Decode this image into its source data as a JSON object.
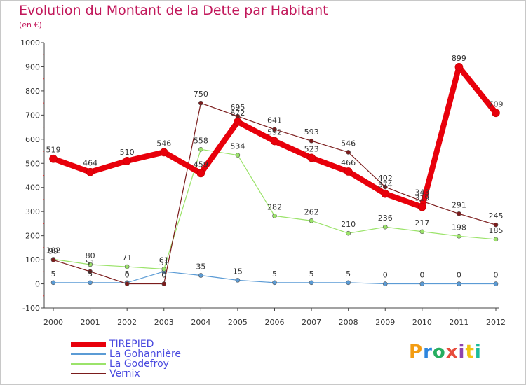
{
  "title": "Evolution du Montant de la Dette par Habitant",
  "subtitle": "(en €)",
  "logo": {
    "text": "Proxiti",
    "colors": [
      "#f39c12",
      "#2e86de",
      "#27ae60",
      "#e74c3c",
      "#8e44ad",
      "#f1c40f",
      "#1abc9c"
    ]
  },
  "chart_data": {
    "type": "line",
    "title": "Evolution du Montant de la Dette par Habitant",
    "ylabel": "(en €)",
    "xlabel": "",
    "x": [
      "2000",
      "2001",
      "2002",
      "2003",
      "2004",
      "2005",
      "2006",
      "2007",
      "2008",
      "2009",
      "2010",
      "2011",
      "2012"
    ],
    "ylim": [
      -100,
      1000
    ],
    "yticks": [
      "-100",
      "0",
      "100",
      "200",
      "300",
      "400",
      "500",
      "600",
      "700",
      "800",
      "900",
      "1000"
    ],
    "grid": false,
    "legend_position": "bottom-left",
    "series": [
      {
        "name": "TIREPIED",
        "color": "#e8000b",
        "values": [
          519,
          464,
          510,
          546,
          459,
          672,
          592,
          523,
          466,
          374,
          319,
          899,
          709
        ],
        "labels": [
          "519",
          "464",
          "510",
          "546",
          "459",
          "672",
          "592",
          "523",
          "466",
          "374",
          "319",
          "899",
          "709"
        ]
      },
      {
        "name": "La Gohannière",
        "color": "#5b9bd5",
        "values": [
          5,
          5,
          5,
          51,
          35,
          15,
          5,
          5,
          5,
          0,
          0,
          0,
          0
        ],
        "labels": [
          "5",
          "5",
          "5",
          "51",
          "35",
          "15",
          "5",
          "5",
          "5",
          "0",
          "0",
          "0",
          "0"
        ]
      },
      {
        "name": "La Godefroy",
        "color": "#9be36a",
        "values": [
          102,
          80,
          71,
          61,
          558,
          534,
          282,
          262,
          210,
          236,
          217,
          198,
          185
        ],
        "labels": [
          "102",
          "80",
          "71",
          "61",
          "558",
          "534",
          "282",
          "262",
          "210",
          "236",
          "217",
          "198",
          "185"
        ]
      },
      {
        "name": "Vernix",
        "color": "#7b1c1c",
        "values": [
          99,
          51,
          0,
          0,
          750,
          695,
          641,
          593,
          546,
          402,
          343,
          291,
          245
        ],
        "labels": [
          "99",
          "51",
          "0",
          "0",
          "750",
          "695",
          "641",
          "593",
          "546",
          "402",
          "343",
          "291",
          "245"
        ]
      }
    ]
  }
}
